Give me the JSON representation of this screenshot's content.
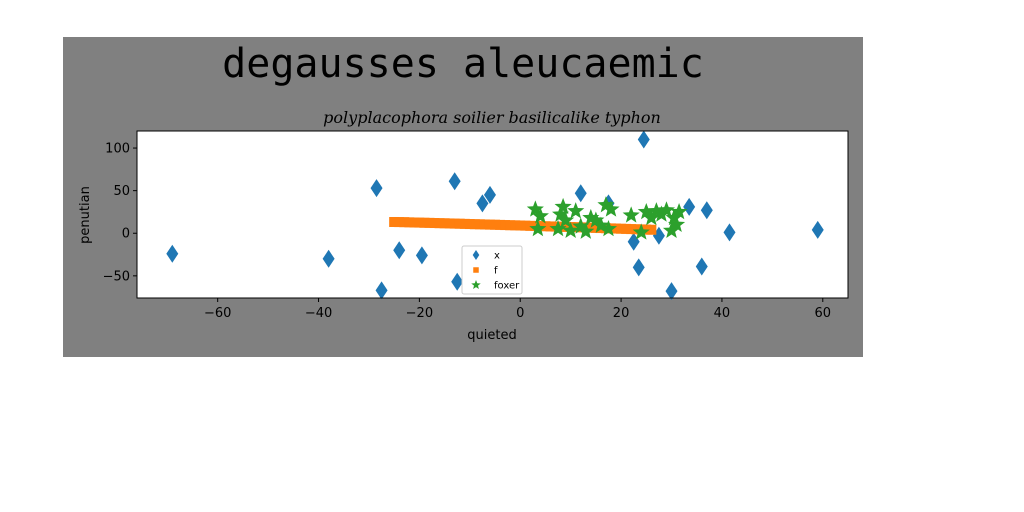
{
  "chart_data": {
    "type": "scatter",
    "title": "degausses aleucaemic",
    "subtitle": "polyplacophora soilier basilicalike typhon",
    "xlabel": "quieted",
    "ylabel": "penutian",
    "xlim": [
      -76,
      65
    ],
    "ylim": [
      -76,
      120
    ],
    "xticks": [
      -60,
      -40,
      -20,
      0,
      20,
      40,
      60
    ],
    "yticks": [
      -50,
      0,
      50,
      100
    ],
    "xtick_labels": [
      "−60",
      "−40",
      "−20",
      "0",
      "20",
      "40",
      "60"
    ],
    "ytick_labels": [
      "−50",
      "0",
      "50",
      "100"
    ],
    "grid": false,
    "legend": {
      "placement": "lower-center"
    },
    "colors": {
      "figure_background": "#808080",
      "axes_background": "#ffffff",
      "x": "#1f77b4",
      "f": "#ff7f0e",
      "foxer": "#2ca02c"
    },
    "series": [
      {
        "name": "x",
        "marker": "diamond",
        "points": [
          [
            -69,
            -24
          ],
          [
            -38,
            -30
          ],
          [
            -28.5,
            53
          ],
          [
            -27.5,
            -67
          ],
          [
            -24,
            -20
          ],
          [
            -19.5,
            -26
          ],
          [
            -13,
            61
          ],
          [
            -12.5,
            -57
          ],
          [
            -7.5,
            35
          ],
          [
            -6,
            45
          ],
          [
            12,
            47
          ],
          [
            17.5,
            35
          ],
          [
            22.5,
            -10
          ],
          [
            23.5,
            -40
          ],
          [
            24.5,
            110
          ],
          [
            27.5,
            -3
          ],
          [
            30,
            -68
          ],
          [
            33.5,
            31
          ],
          [
            36,
            -39
          ],
          [
            37,
            27
          ],
          [
            41.5,
            1
          ],
          [
            59,
            4
          ]
        ]
      },
      {
        "name": "f",
        "marker": "square",
        "points": [
          [
            -25,
            13.2
          ],
          [
            -24,
            13.1
          ],
          [
            -23,
            13
          ],
          [
            -22,
            12.8
          ],
          [
            -21,
            12.6
          ],
          [
            -20,
            12.5
          ],
          [
            -19,
            12.3
          ],
          [
            -18,
            12.2
          ],
          [
            -17,
            12
          ],
          [
            -16,
            11.8
          ],
          [
            -15,
            11.7
          ],
          [
            -14,
            11.5
          ],
          [
            -13,
            11.3
          ],
          [
            -12,
            11.2
          ],
          [
            -11,
            11
          ],
          [
            -10,
            10.8
          ],
          [
            -9,
            10.6
          ],
          [
            -8,
            10.5
          ],
          [
            -7,
            10.3
          ],
          [
            -6,
            10.1
          ],
          [
            -5,
            10
          ],
          [
            -4,
            9.8
          ],
          [
            -3,
            9.6
          ],
          [
            -2,
            9.4
          ],
          [
            -1,
            9.3
          ],
          [
            0,
            9.1
          ],
          [
            1,
            8.9
          ],
          [
            2,
            8.7
          ],
          [
            3,
            8.5
          ],
          [
            4,
            8.4
          ],
          [
            5,
            8.2
          ],
          [
            6,
            8
          ],
          [
            7,
            7.8
          ],
          [
            8,
            7.6
          ],
          [
            9,
            7.5
          ],
          [
            10,
            7.3
          ],
          [
            11,
            7.1
          ],
          [
            12,
            6.9
          ],
          [
            13,
            6.7
          ],
          [
            14,
            6.5
          ],
          [
            15,
            6.3
          ],
          [
            16,
            6.1
          ],
          [
            17,
            5.9
          ],
          [
            18,
            5.7
          ],
          [
            19,
            5.5
          ],
          [
            20,
            5.3
          ],
          [
            21,
            5.1
          ],
          [
            22,
            4.9
          ],
          [
            23,
            4.7
          ],
          [
            24,
            4.5
          ],
          [
            25,
            4.3
          ],
          [
            26,
            4.1
          ]
        ]
      },
      {
        "name": "foxer",
        "marker": "star",
        "points": [
          [
            3,
            28
          ],
          [
            3.5,
            5
          ],
          [
            4,
            20
          ],
          [
            7.5,
            5
          ],
          [
            8,
            22
          ],
          [
            8.5,
            31
          ],
          [
            9,
            15
          ],
          [
            10,
            3
          ],
          [
            11,
            26
          ],
          [
            12,
            8
          ],
          [
            13,
            2
          ],
          [
            14,
            18
          ],
          [
            15,
            15
          ],
          [
            16,
            9
          ],
          [
            17,
            33
          ],
          [
            17.5,
            5
          ],
          [
            18,
            28
          ],
          [
            22,
            21
          ],
          [
            24,
            1
          ],
          [
            25,
            25
          ],
          [
            26,
            18
          ],
          [
            27,
            26
          ],
          [
            28,
            22
          ],
          [
            29,
            27
          ],
          [
            30,
            3
          ],
          [
            30.5,
            18
          ],
          [
            31,
            10
          ],
          [
            31.5,
            25
          ]
        ]
      }
    ]
  }
}
